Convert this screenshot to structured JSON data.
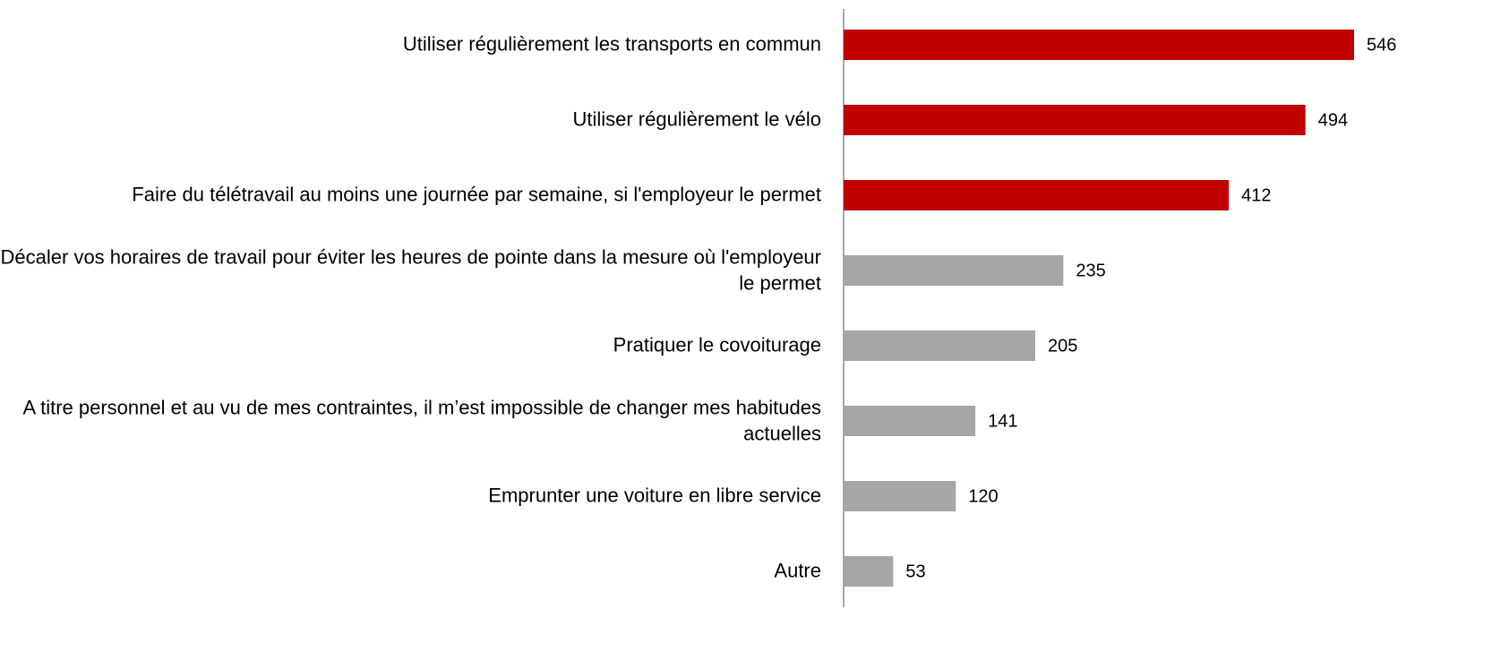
{
  "chart_data": {
    "type": "bar",
    "orientation": "horizontal",
    "categories": [
      "Utiliser régulièrement les transports en commun",
      "Utiliser régulièrement le vélo",
      "Faire du télétravail au moins une journée par semaine, si l'employeur le permet",
      "Décaler vos horaires de travail pour éviter les heures de pointe dans la mesure où l'employeur le permet",
      "Pratiquer le covoiturage",
      "A titre personnel et au vu de mes contraintes, il m’est impossible de changer mes habitudes actuelles",
      "Emprunter une voiture en libre service",
      "Autre"
    ],
    "values": [
      546,
      494,
      412,
      235,
      205,
      141,
      120,
      53
    ],
    "colors": [
      "#c00000",
      "#c00000",
      "#c00000",
      "#a6a6a6",
      "#a6a6a6",
      "#a6a6a6",
      "#a6a6a6",
      "#a6a6a6"
    ]
  }
}
